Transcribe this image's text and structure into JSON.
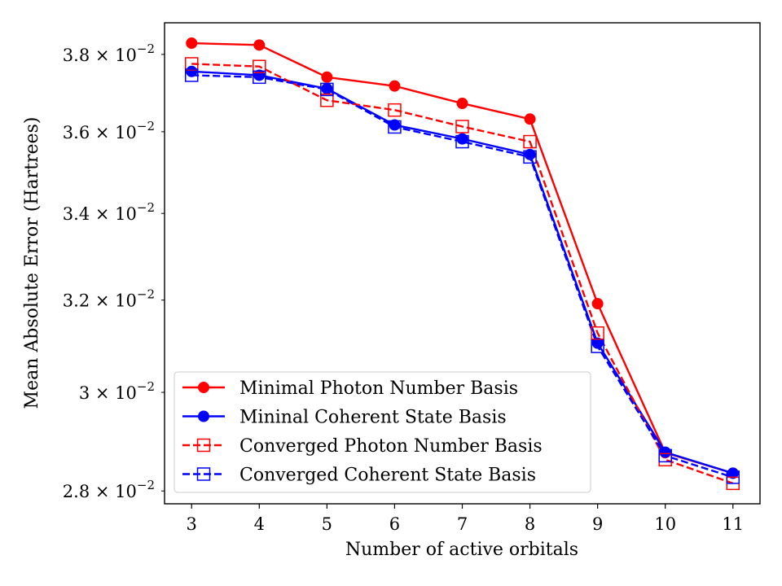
{
  "chart_data": {
    "type": "line",
    "xlabel": "Number of active orbitals",
    "ylabel": "Mean Absolute Error (Hartrees)",
    "yscale": "log",
    "xlim": [
      2.6,
      11.4
    ],
    "ylim": [
      0.02775,
      0.03885
    ],
    "x": [
      3,
      4,
      5,
      6,
      7,
      8,
      9,
      10,
      11
    ],
    "xticks": [
      "3",
      "4",
      "5",
      "6",
      "7",
      "8",
      "9",
      "10",
      "11"
    ],
    "yticks": [
      {
        "value": 0.038,
        "mantissa": "3.8",
        "exponent": "−2"
      },
      {
        "value": 0.036,
        "mantissa": "3.6",
        "exponent": "−2"
      },
      {
        "value": 0.034,
        "mantissa": "3.4",
        "exponent": "−2"
      },
      {
        "value": 0.032,
        "mantissa": "3.2",
        "exponent": "−2"
      },
      {
        "value": 0.03,
        "mantissa": "3",
        "exponent": "−2"
      },
      {
        "value": 0.028,
        "mantissa": "2.8",
        "exponent": "−2"
      }
    ],
    "tick_multiplier": "×10",
    "legend_position": "lower-left",
    "series": [
      {
        "name": "Minimal Photon Number Basis",
        "color": "#ff0000",
        "linestyle": "solid",
        "marker": "circle",
        "values": [
          0.0383,
          0.03825,
          0.0374,
          0.03717,
          0.03672,
          0.03632,
          0.03192,
          0.02876,
          0.02835
        ]
      },
      {
        "name": "Mininal Coherent State Basis",
        "color": "#0000ff",
        "linestyle": "solid",
        "marker": "circle",
        "values": [
          0.03755,
          0.03745,
          0.0371,
          0.03617,
          0.03582,
          0.03543,
          0.03105,
          0.02877,
          0.02835
        ]
      },
      {
        "name": "Converged Photon Number Basis",
        "color": "#ff0000",
        "linestyle": "dashed",
        "marker": "open-square",
        "values": [
          0.03775,
          0.03768,
          0.0368,
          0.03655,
          0.03613,
          0.03575,
          0.03127,
          0.02862,
          0.02815
        ]
      },
      {
        "name": "Converged Coherent State Basis",
        "color": "#0000ff",
        "linestyle": "dashed",
        "marker": "open-square",
        "values": [
          0.03745,
          0.0374,
          0.03708,
          0.03612,
          0.03575,
          0.03537,
          0.03098,
          0.0287,
          0.02827
        ]
      }
    ]
  }
}
